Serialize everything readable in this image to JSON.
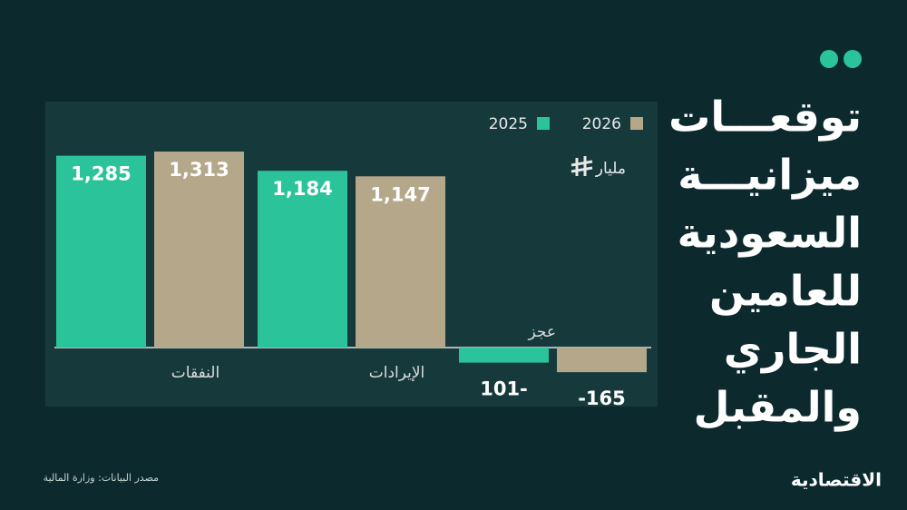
{
  "chart_data": {
    "type": "bar",
    "title_lines": [
      "توقعـــات",
      "ميزانيـــة",
      "السعودية",
      "للعامين",
      "الجاري",
      "والمقبل"
    ],
    "unit": "مليار",
    "categories": [
      "النفقات",
      "الإيرادات",
      "عجز"
    ],
    "series": [
      {
        "name": "2025",
        "color": "#2bc49a",
        "values": [
          1285,
          1184,
          -101
        ],
        "value_labels": [
          "1,285",
          "1,184",
          "101-"
        ]
      },
      {
        "name": "2026",
        "color": "#b5a88a",
        "values": [
          1313,
          1147,
          -165
        ],
        "value_labels": [
          "1,313",
          "1,147",
          "-165"
        ]
      }
    ],
    "source": "مصدر البيانات: وزارة المالية",
    "brand": "الاقتصادية"
  }
}
